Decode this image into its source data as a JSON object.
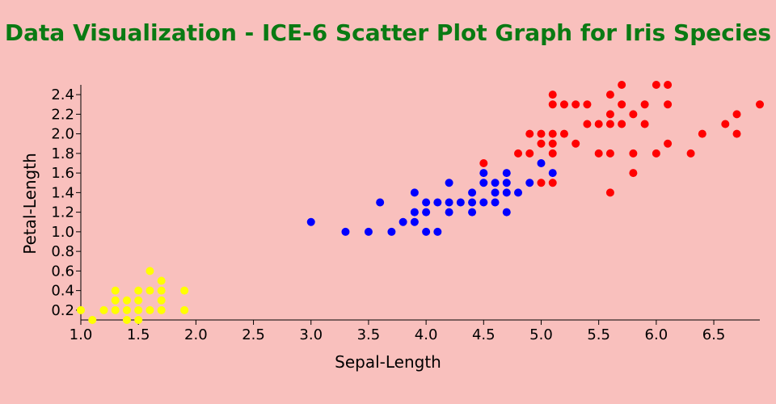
{
  "chart_data": {
    "type": "scatter",
    "title": "Data Visualization - ICE-6 Scatter Plot Graph for Iris Species",
    "xlabel": "Sepal-Length",
    "ylabel": "Petal-Length",
    "xlim": [
      1.0,
      6.9
    ],
    "ylim": [
      0.1,
      2.5
    ],
    "xticks": [
      "1.0",
      "1.5",
      "2.0",
      "2.5",
      "3.0",
      "3.5",
      "4.0",
      "4.5",
      "5.0",
      "5.5",
      "6.0",
      "6.5"
    ],
    "yticks": [
      "0.2",
      "0.4",
      "0.6",
      "0.8",
      "1.0",
      "1.2",
      "1.4",
      "1.6",
      "1.8",
      "2.0",
      "2.2",
      "2.4"
    ],
    "grid": false,
    "series": [
      {
        "color": "#ffff00",
        "points": [
          [
            1.0,
            0.2
          ],
          [
            1.1,
            0.1
          ],
          [
            1.2,
            0.2
          ],
          [
            1.3,
            0.2
          ],
          [
            1.3,
            0.3
          ],
          [
            1.3,
            0.4
          ],
          [
            1.4,
            0.1
          ],
          [
            1.4,
            0.2
          ],
          [
            1.4,
            0.3
          ],
          [
            1.5,
            0.1
          ],
          [
            1.5,
            0.2
          ],
          [
            1.5,
            0.3
          ],
          [
            1.5,
            0.4
          ],
          [
            1.6,
            0.2
          ],
          [
            1.6,
            0.4
          ],
          [
            1.6,
            0.6
          ],
          [
            1.7,
            0.2
          ],
          [
            1.7,
            0.3
          ],
          [
            1.7,
            0.4
          ],
          [
            1.7,
            0.5
          ],
          [
            1.9,
            0.2
          ],
          [
            1.9,
            0.4
          ]
        ]
      },
      {
        "color": "#0000ff",
        "points": [
          [
            3.0,
            1.1
          ],
          [
            3.3,
            1.0
          ],
          [
            3.5,
            1.0
          ],
          [
            3.6,
            1.3
          ],
          [
            3.7,
            1.0
          ],
          [
            3.8,
            1.1
          ],
          [
            3.9,
            1.1
          ],
          [
            3.9,
            1.2
          ],
          [
            3.9,
            1.4
          ],
          [
            4.0,
            1.0
          ],
          [
            4.0,
            1.2
          ],
          [
            4.0,
            1.3
          ],
          [
            4.1,
            1.0
          ],
          [
            4.1,
            1.3
          ],
          [
            4.2,
            1.2
          ],
          [
            4.2,
            1.3
          ],
          [
            4.2,
            1.5
          ],
          [
            4.3,
            1.3
          ],
          [
            4.4,
            1.2
          ],
          [
            4.4,
            1.3
          ],
          [
            4.4,
            1.4
          ],
          [
            4.5,
            1.3
          ],
          [
            4.5,
            1.5
          ],
          [
            4.5,
            1.6
          ],
          [
            4.6,
            1.3
          ],
          [
            4.6,
            1.4
          ],
          [
            4.6,
            1.5
          ],
          [
            4.7,
            1.2
          ],
          [
            4.7,
            1.4
          ],
          [
            4.7,
            1.5
          ],
          [
            4.7,
            1.6
          ],
          [
            4.8,
            1.4
          ],
          [
            4.9,
            1.5
          ],
          [
            5.0,
            1.7
          ],
          [
            5.1,
            1.6
          ]
        ]
      },
      {
        "color": "#ff0000",
        "points": [
          [
            4.5,
            1.7
          ],
          [
            4.8,
            1.8
          ],
          [
            4.9,
            1.8
          ],
          [
            4.9,
            2.0
          ],
          [
            5.0,
            1.5
          ],
          [
            5.0,
            1.9
          ],
          [
            5.0,
            2.0
          ],
          [
            5.1,
            1.5
          ],
          [
            5.1,
            1.8
          ],
          [
            5.1,
            1.9
          ],
          [
            5.1,
            2.0
          ],
          [
            5.1,
            2.3
          ],
          [
            5.1,
            2.4
          ],
          [
            5.2,
            2.0
          ],
          [
            5.2,
            2.3
          ],
          [
            5.3,
            1.9
          ],
          [
            5.3,
            2.3
          ],
          [
            5.4,
            2.1
          ],
          [
            5.4,
            2.3
          ],
          [
            5.5,
            1.8
          ],
          [
            5.5,
            2.1
          ],
          [
            5.6,
            1.4
          ],
          [
            5.6,
            1.8
          ],
          [
            5.6,
            2.1
          ],
          [
            5.6,
            2.2
          ],
          [
            5.6,
            2.4
          ],
          [
            5.7,
            2.1
          ],
          [
            5.7,
            2.3
          ],
          [
            5.7,
            2.5
          ],
          [
            5.8,
            1.6
          ],
          [
            5.8,
            1.8
          ],
          [
            5.8,
            2.2
          ],
          [
            5.9,
            2.1
          ],
          [
            5.9,
            2.3
          ],
          [
            6.0,
            1.8
          ],
          [
            6.0,
            2.5
          ],
          [
            6.1,
            1.9
          ],
          [
            6.1,
            2.3
          ],
          [
            6.1,
            2.5
          ],
          [
            6.3,
            1.8
          ],
          [
            6.4,
            2.0
          ],
          [
            6.6,
            2.1
          ],
          [
            6.7,
            2.0
          ],
          [
            6.7,
            2.2
          ],
          [
            6.9,
            2.3
          ]
        ]
      }
    ]
  }
}
